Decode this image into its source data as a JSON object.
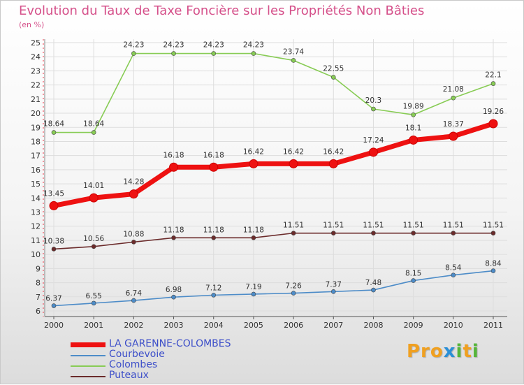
{
  "title": "Evolution du Taux de Taxe Foncière sur les Propriétés Non Bâties",
  "unit": "(en %)",
  "chart_data": {
    "type": "line",
    "title": "Evolution du Taux de Taxe Foncière sur les Propriétés Non Bâties",
    "ylabel": "(en %)",
    "xlabel": "",
    "ylim": [
      6,
      25
    ],
    "x": [
      "2000",
      "2001",
      "2002",
      "2003",
      "2004",
      "2005",
      "2006",
      "2007",
      "2008",
      "2009",
      "2010",
      "2011"
    ],
    "y_ticks": [
      "6",
      "7",
      "8",
      "9",
      "10",
      "11",
      "12",
      "13",
      "14",
      "15",
      "16",
      "17",
      "18",
      "19",
      "20",
      "21",
      "22",
      "23",
      "24",
      "25"
    ],
    "series": [
      {
        "name": "LA GARENNE-COLOMBES",
        "color": "#ee1111",
        "values": [
          13.45,
          14.01,
          14.28,
          16.18,
          16.18,
          16.42,
          16.42,
          16.42,
          17.24,
          18.1,
          18.37,
          19.26
        ],
        "labels": [
          "13.45",
          "14.01",
          "14.28",
          "16.18",
          "16.18",
          "16.42",
          "16.42",
          "16.42",
          "17.24",
          "18.1",
          "18.37",
          "19.26"
        ]
      },
      {
        "name": "Courbevoie",
        "color": "#4d8cc8",
        "values": [
          6.37,
          6.55,
          6.74,
          6.98,
          7.12,
          7.19,
          7.26,
          7.37,
          7.48,
          8.15,
          8.54,
          8.84
        ],
        "labels": [
          "6.37",
          "6.55",
          "6.74",
          "6.98",
          "7.12",
          "7.19",
          "7.26",
          "7.37",
          "7.48",
          "8.15",
          "8.54",
          "8.84"
        ]
      },
      {
        "name": "Colombes",
        "color": "#88cc55",
        "values": [
          18.64,
          18.64,
          24.23,
          24.23,
          24.23,
          24.23,
          23.74,
          22.55,
          20.3,
          19.89,
          21.08,
          22.1
        ],
        "labels": [
          "18.64",
          "18.64",
          "24.23",
          "24.23",
          "24.23",
          "24.23",
          "23.74",
          "22.55",
          "20.3",
          "19.89",
          "21.08",
          "22.1"
        ]
      },
      {
        "name": "Puteaux",
        "color": "#6b2b2b",
        "values": [
          10.38,
          10.56,
          10.88,
          11.18,
          11.18,
          11.18,
          11.51,
          11.51,
          11.51,
          11.51,
          11.51,
          11.51
        ],
        "labels": [
          "10.38",
          "10.56",
          "10.88",
          "11.18",
          "11.18",
          "11.18",
          "11.51",
          "11.51",
          "11.51",
          "11.51",
          "11.51",
          "11.51"
        ]
      }
    ],
    "legend_position": "bottom-left",
    "grid": true
  },
  "legend": [
    {
      "label": "LA GARENNE-COLOMBES",
      "color": "#ee1111"
    },
    {
      "label": "Courbevoie",
      "color": "#4d8cc8"
    },
    {
      "label": "Colombes",
      "color": "#88cc55"
    },
    {
      "label": "Puteaux",
      "color": "#6b2b2b"
    }
  ],
  "logo": {
    "p1": "Pro",
    "x": "x",
    "i": "i",
    "p2": "t",
    "p3": "i"
  }
}
